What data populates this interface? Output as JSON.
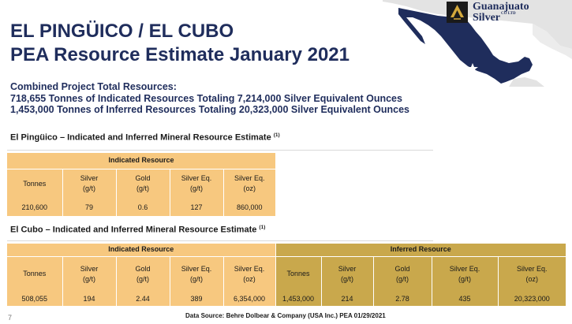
{
  "logo": {
    "name_line1": "Guanajuato",
    "name_line2": "Silver",
    "suffix": "CO LTD"
  },
  "title": {
    "line1": "EL PINGÜICO / EL CUBO",
    "line2": "PEA Resource Estimate January 2021"
  },
  "summary": {
    "line1": "Combined Project Total Resources:",
    "line2": "718,655 Tonnes of Indicated Resources Totaling 7,214,000 Silver Equivalent Ounces",
    "line3": "1,453,000 Tonnes of Inferred Resources Totaling 20,323,000 Silver Equivalent Ounces"
  },
  "pinguico": {
    "heading": "El Pingüico – Indicated and Inferred Mineral Resource Estimate",
    "footnote_ref": "(1)",
    "group_label": "Indicated Resource",
    "headers": [
      [
        "Tonnes",
        ""
      ],
      [
        "Silver",
        "(g/t)"
      ],
      [
        "Gold",
        "(g/t)"
      ],
      [
        "Silver Eq.",
        "(g/t)"
      ],
      [
        "Silver Eq.",
        "(oz)"
      ]
    ],
    "row": [
      "210,600",
      "79",
      "0.6",
      "127",
      "860,000"
    ]
  },
  "cubo": {
    "heading": "El Cubo – Indicated and Inferred Mineral Resource Estimate",
    "footnote_ref": "(1)",
    "indicated_label": "Indicated Resource",
    "inferred_label": "Inferred Resource",
    "indicated_headers": [
      [
        "Tonnes",
        ""
      ],
      [
        "Silver",
        "(g/t)"
      ],
      [
        "Gold",
        "(g/t)"
      ],
      [
        "Silver Eq.",
        "(g/t)"
      ],
      [
        "Silver Eq.",
        "(oz)"
      ]
    ],
    "inferred_headers": [
      [
        "Tonnes",
        ""
      ],
      [
        "Silver",
        "(g/t)"
      ],
      [
        "Gold",
        "(g/t)"
      ],
      [
        "Silver Eq.",
        "(g/t)"
      ],
      [
        "Silver Eq.",
        "(oz)"
      ]
    ],
    "indicated_row": [
      "508,055",
      "194",
      "2.44",
      "389",
      "6,354,000"
    ],
    "inferred_row": [
      "1,453,000",
      "214",
      "2.78",
      "435",
      "20,323,000"
    ]
  },
  "footer": {
    "page_number": "7",
    "source": "Data Source: Behre Dolbear & Company (USA Inc.) PEA 01/29/2021"
  },
  "colors": {
    "navy": "#1f2d5c",
    "indicated_fill": "#f7c87f",
    "inferred_fill": "#c9a84c",
    "map_land": "#e3e3e3",
    "map_mexico": "#1f2d5c"
  }
}
